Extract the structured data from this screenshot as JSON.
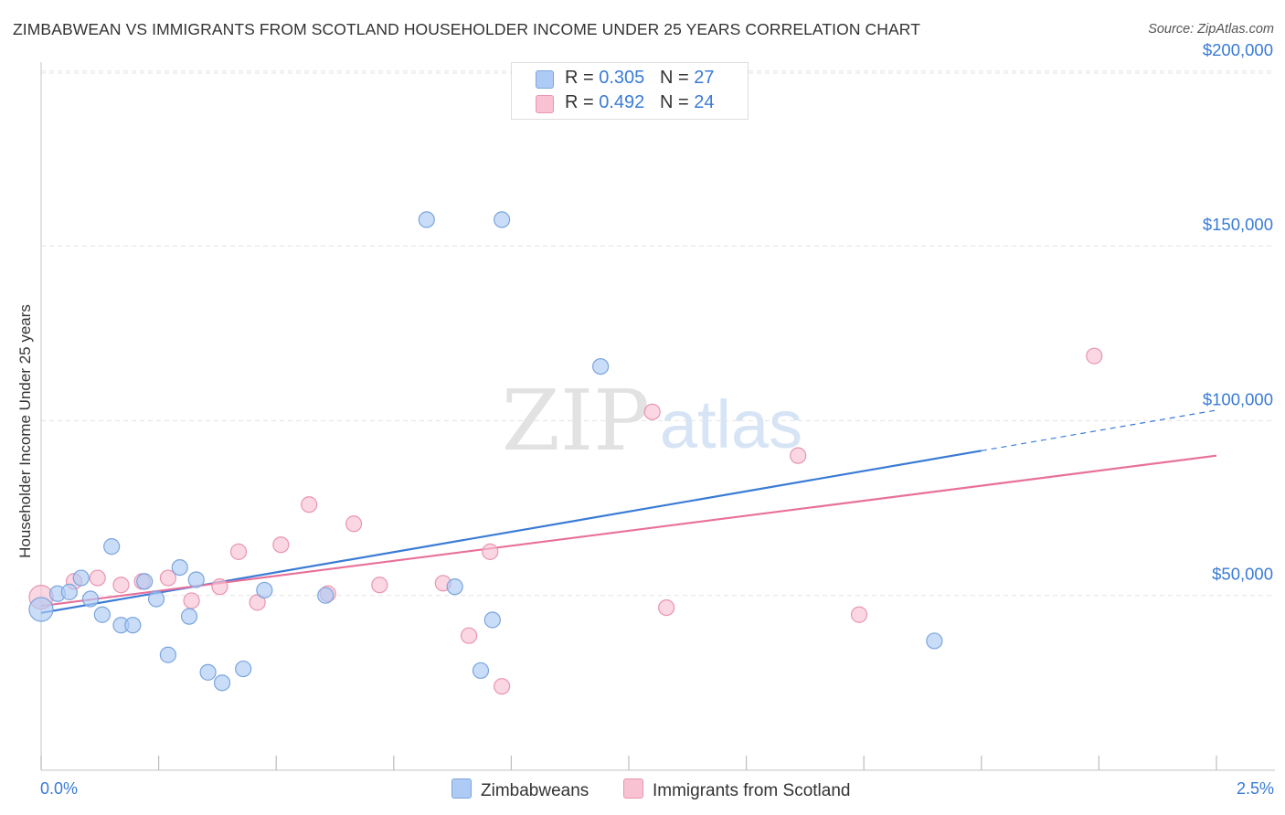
{
  "title": "ZIMBABWEAN VS IMMIGRANTS FROM SCOTLAND HOUSEHOLDER INCOME UNDER 25 YEARS CORRELATION CHART",
  "source": "Source: ZipAtlas.com",
  "watermark": {
    "zip": "ZIP",
    "atlas": "atlas"
  },
  "legend": {
    "rows": [
      {
        "r_label": "R = ",
        "r_value": "0.305",
        "n_label": "N = ",
        "n_value": "27",
        "color": "#aecbf5",
        "border": "#7aa5dd"
      },
      {
        "r_label": "R = ",
        "r_value": "0.492",
        "n_label": "N = ",
        "n_value": "24",
        "color": "#f8c2d3",
        "border": "#e895b0"
      }
    ]
  },
  "bottom_legend": [
    {
      "label": "Zimbabweans",
      "color": "#aecbf5",
      "border": "#7aa5dd"
    },
    {
      "label": "Immigrants from Scotland",
      "color": "#f8c2d3",
      "border": "#e895b0"
    }
  ],
  "chart_data": {
    "type": "scatter",
    "title": "ZIMBABWEAN VS IMMIGRANTS FROM SCOTLAND HOUSEHOLDER INCOME UNDER 25 YEARS CORRELATION CHART",
    "xlabel": "",
    "ylabel": "Householder Income Under 25 years",
    "xlim": [
      0,
      2.5
    ],
    "ylim": [
      0,
      200000
    ],
    "x_tick_labels": [
      "0.0%",
      "2.5%"
    ],
    "y_ticks": [
      50000,
      100000,
      150000,
      200000
    ],
    "y_tick_labels": [
      "$50,000",
      "$100,000",
      "$150,000",
      "$200,000"
    ],
    "grid": true,
    "series": [
      {
        "name": "Zimbabweans",
        "color": "#3a7bd5",
        "fill": "#aecbf5",
        "stroke": "#7aa5dd",
        "points": [
          [
            0.0,
            46000
          ],
          [
            0.035,
            50500
          ],
          [
            0.06,
            51000
          ],
          [
            0.085,
            55000
          ],
          [
            0.105,
            49000
          ],
          [
            0.13,
            44500
          ],
          [
            0.15,
            64000
          ],
          [
            0.17,
            41500
          ],
          [
            0.195,
            41500
          ],
          [
            0.22,
            54000
          ],
          [
            0.245,
            49000
          ],
          [
            0.27,
            33000
          ],
          [
            0.295,
            58000
          ],
          [
            0.315,
            44000
          ],
          [
            0.33,
            54500
          ],
          [
            0.355,
            28000
          ],
          [
            0.385,
            25000
          ],
          [
            0.43,
            29000
          ],
          [
            0.475,
            51500
          ],
          [
            0.605,
            50000
          ],
          [
            0.82,
            157500
          ],
          [
            0.88,
            52500
          ],
          [
            0.935,
            28500
          ],
          [
            0.96,
            43000
          ],
          [
            0.98,
            157500
          ],
          [
            1.19,
            115500
          ],
          [
            1.9,
            37000
          ]
        ],
        "trend": {
          "x0": 0.0,
          "y0": 45000,
          "x1": 2.5,
          "y1": 103000,
          "solid_until_x": 2.0
        }
      },
      {
        "name": "Immigrants from Scotland",
        "color": "#e8709a",
        "fill": "#f8c2d3",
        "stroke": "#e895b0",
        "points": [
          [
            0.0,
            49500
          ],
          [
            0.07,
            54000
          ],
          [
            0.12,
            55000
          ],
          [
            0.17,
            53000
          ],
          [
            0.215,
            54000
          ],
          [
            0.27,
            55000
          ],
          [
            0.32,
            48500
          ],
          [
            0.38,
            52500
          ],
          [
            0.42,
            62500
          ],
          [
            0.46,
            48000
          ],
          [
            0.51,
            64500
          ],
          [
            0.57,
            76000
          ],
          [
            0.61,
            50500
          ],
          [
            0.665,
            70500
          ],
          [
            0.72,
            53000
          ],
          [
            0.855,
            53500
          ],
          [
            0.91,
            38500
          ],
          [
            0.955,
            62500
          ],
          [
            0.98,
            24000
          ],
          [
            1.3,
            102500
          ],
          [
            1.33,
            46500
          ],
          [
            1.61,
            90000
          ],
          [
            1.74,
            44500
          ],
          [
            2.24,
            118500
          ]
        ],
        "trend": {
          "x0": 0.0,
          "y0": 47000,
          "x1": 2.5,
          "y1": 90000,
          "solid_until_x": 2.5
        }
      }
    ]
  }
}
